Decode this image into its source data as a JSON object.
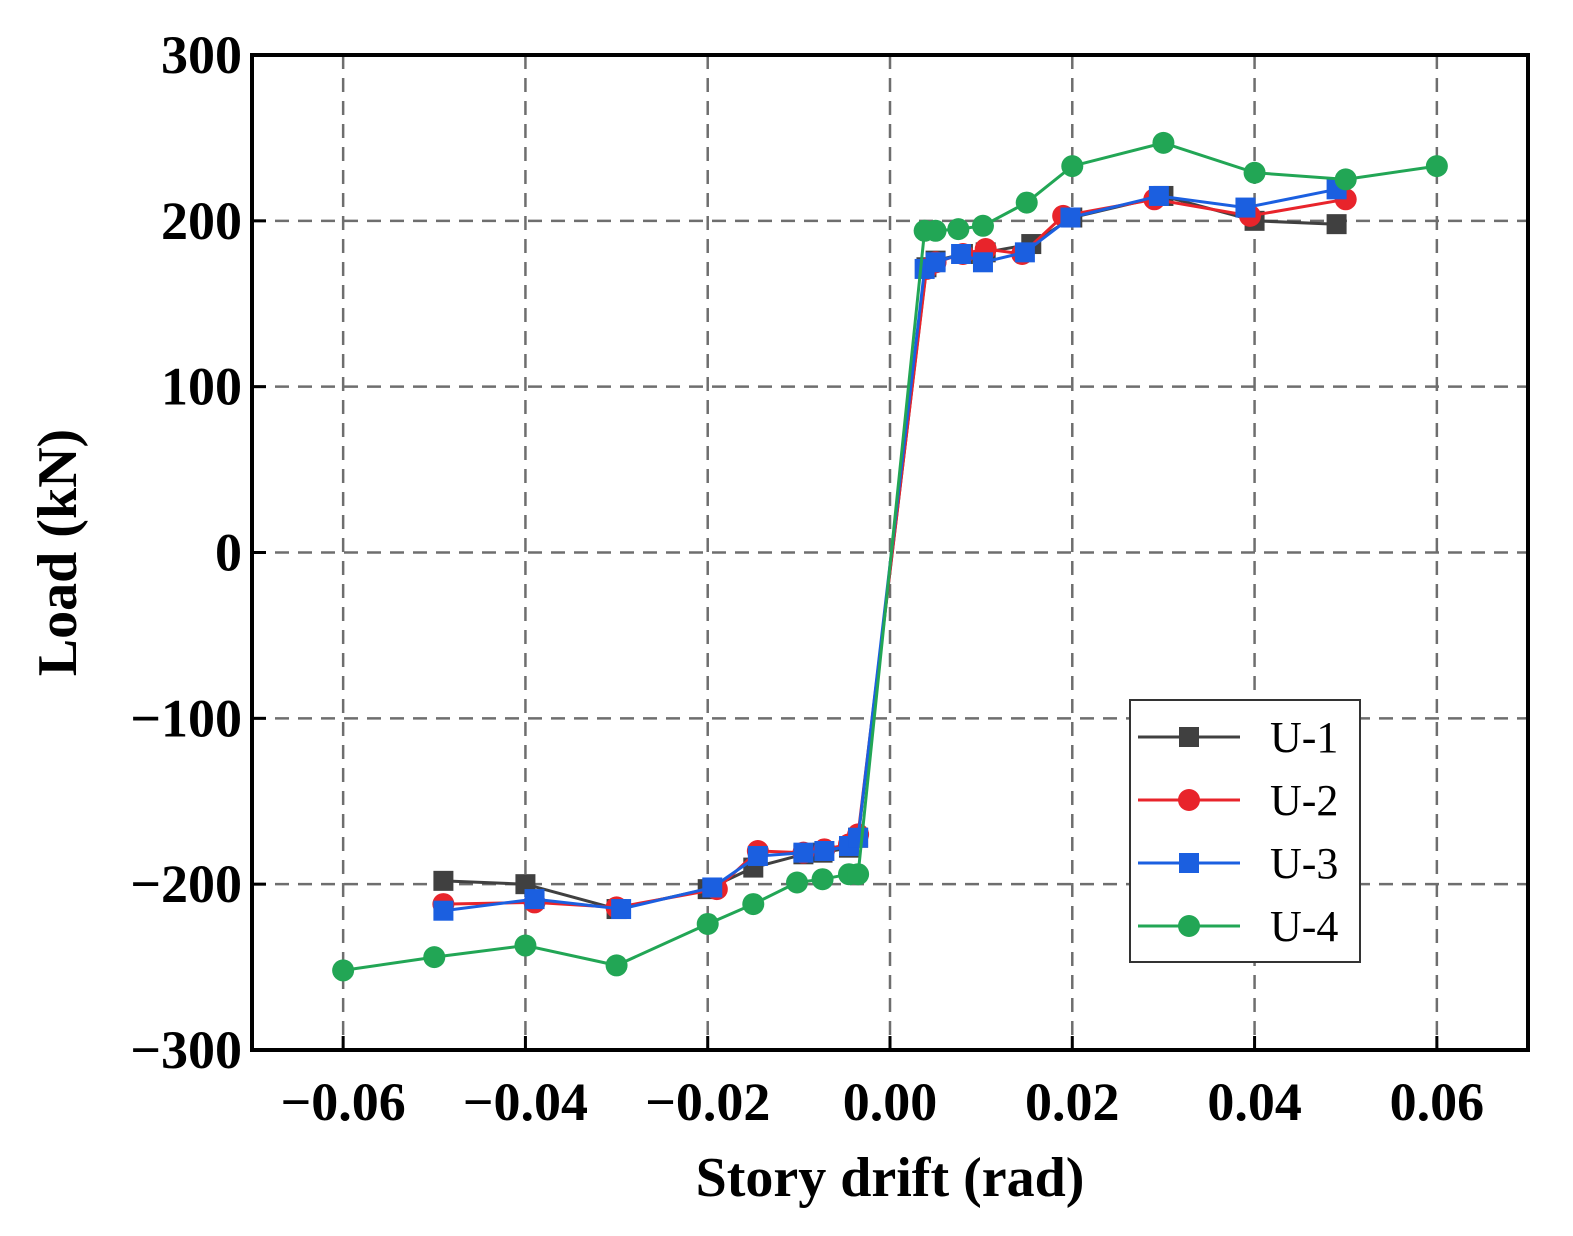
{
  "chart_data": {
    "type": "line",
    "title": "",
    "xlabel": "Story drift (rad)",
    "ylabel": "Load (kN)",
    "xlim": [
      -0.07,
      0.07
    ],
    "ylim": [
      -300,
      300
    ],
    "xticks": [
      -0.06,
      -0.04,
      -0.02,
      0.0,
      0.02,
      0.04,
      0.06
    ],
    "xtick_labels": [
      "−0.06",
      "−0.04",
      "−0.02",
      "0.00",
      "0.02",
      "0.04",
      "0.06"
    ],
    "yticks": [
      300,
      200,
      100,
      0,
      -100,
      -200,
      -300
    ],
    "ytick_labels": [
      "300",
      "200",
      "100",
      "0",
      "−100",
      "−200",
      "−300"
    ],
    "grid": true,
    "legend_position": "lower-right",
    "series": [
      {
        "name": "U-1",
        "color": "#404040",
        "marker": "square",
        "x": [
          -0.049,
          -0.04,
          -0.03,
          -0.02,
          -0.015,
          -0.0095,
          -0.0074,
          -0.0045,
          -0.0035,
          0.004,
          0.005,
          0.008,
          0.0105,
          0.0155,
          0.02,
          0.03,
          0.04,
          0.049
        ],
        "y": [
          -198,
          -200,
          -215,
          -203,
          -190,
          -182,
          -181,
          -178,
          -172,
          172,
          176,
          180,
          181,
          186,
          202,
          215,
          200,
          198
        ]
      },
      {
        "name": "U-2",
        "color": "#e8242b",
        "marker": "circle",
        "x": [
          -0.049,
          -0.039,
          -0.03,
          -0.019,
          -0.0145,
          -0.0095,
          -0.0072,
          -0.0045,
          -0.0035,
          0.004,
          0.005,
          0.008,
          0.0105,
          0.0145,
          0.019,
          0.029,
          0.0395,
          0.05
        ],
        "y": [
          -212,
          -211,
          -214,
          -203,
          -180,
          -181,
          -179,
          -176,
          -170,
          171,
          175,
          180,
          183,
          180,
          203,
          213,
          203,
          213
        ]
      },
      {
        "name": "U-3",
        "color": "#1b5fe0",
        "marker": "square",
        "x": [
          -0.049,
          -0.039,
          -0.0295,
          -0.0195,
          -0.0145,
          -0.0095,
          -0.0072,
          -0.0045,
          -0.0035,
          0.0038,
          0.005,
          0.0078,
          0.0102,
          0.0148,
          0.0198,
          0.0295,
          0.039,
          0.049
        ],
        "y": [
          -216,
          -209,
          -215,
          -202,
          -183,
          -181,
          -180,
          -177,
          -172,
          171,
          175,
          180,
          175,
          181,
          202,
          215,
          208,
          219
        ]
      },
      {
        "name": "U-4",
        "color": "#22a655",
        "marker": "circle",
        "x": [
          -0.06,
          -0.05,
          -0.04,
          -0.03,
          -0.02,
          -0.015,
          -0.0102,
          -0.0074,
          -0.0045,
          -0.0035,
          0.0038,
          0.005,
          0.0075,
          0.0102,
          0.015,
          0.02,
          0.03,
          0.04,
          0.05,
          0.06
        ],
        "y": [
          -252,
          -244,
          -237,
          -249,
          -224,
          -212,
          -199,
          -197,
          -194,
          -194,
          194,
          194,
          195,
          197,
          211,
          233,
          247,
          229,
          225,
          233
        ]
      }
    ]
  }
}
